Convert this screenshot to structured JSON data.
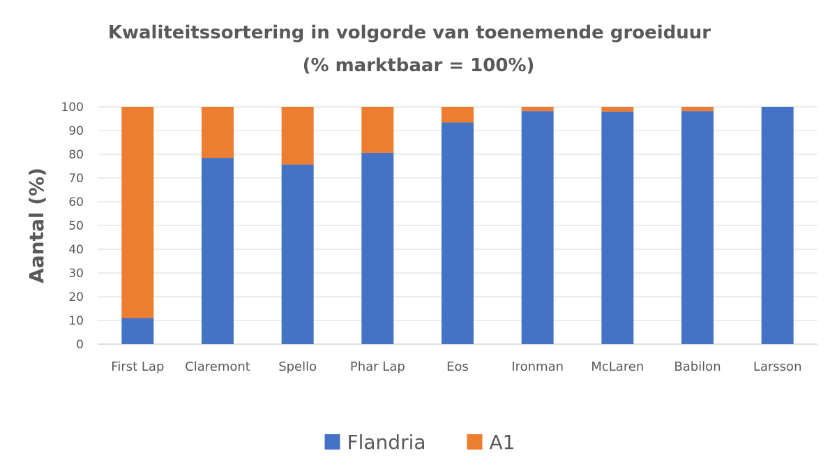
{
  "chart_data": {
    "type": "bar",
    "stacked": true,
    "title": "Kwaliteitssortering in volgorde van toenemende groeiduur",
    "subtitle": "(% marktbaar = 100%)",
    "ylabel": "Aantal (%)",
    "xlabel": "",
    "ylim": [
      0,
      100
    ],
    "yticks": [
      0,
      10,
      20,
      30,
      40,
      50,
      60,
      70,
      80,
      90,
      100
    ],
    "grid": true,
    "legend_position": "bottom",
    "categories": [
      "First Lap",
      "Claremont",
      "Spello",
      "Phar Lap",
      "Eos",
      "Ironman",
      "McLaren",
      "Babilon",
      "Larsson"
    ],
    "series": [
      {
        "name": "Flandria",
        "color": "#4472C4",
        "values": [
          11,
          78.5,
          75.7,
          80.6,
          93.4,
          98.2,
          98,
          98.2,
          100
        ]
      },
      {
        "name": "A1",
        "color": "#ED7D31",
        "values": [
          89,
          21.5,
          24.3,
          19.4,
          6.6,
          1.8,
          2,
          1.8,
          0
        ]
      }
    ]
  }
}
